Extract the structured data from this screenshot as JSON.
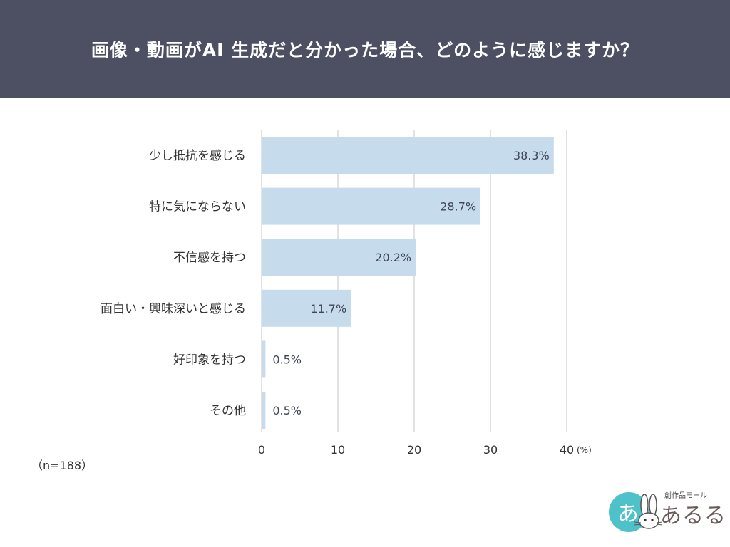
{
  "header": {
    "title": "画像・動画がAI 生成だと分かった場合、どのように感じますか？"
  },
  "chart_data": {
    "type": "bar",
    "orientation": "horizontal",
    "title": "画像・動画がAI 生成だと分かった場合、どのように感じますか？",
    "categories": [
      "少し抵抗を感じる",
      "特に気にならない",
      "不信感を持つ",
      "面白い・興味深いと感じる",
      "好印象を持つ",
      "その他"
    ],
    "values": [
      38.3,
      28.7,
      20.2,
      11.7,
      0.5,
      0.5
    ],
    "value_labels": [
      "38.3%",
      "28.7%",
      "20.2%",
      "11.7%",
      "0.5%",
      "0.5%"
    ],
    "x_ticks": [
      "0",
      "10",
      "20",
      "30",
      "40"
    ],
    "x_unit": "(%)",
    "xlim": [
      0,
      40
    ],
    "grid": true,
    "bar_color": "#c6dcec"
  },
  "note": "（n=188）",
  "logo": {
    "sub": "創作品モール",
    "main": "あるる",
    "mark_text": "あ"
  },
  "colors": {
    "header_bg": "#4c5062",
    "bar": "#c6dcec",
    "grid": "#d9d9d9",
    "logo_accent": "#4fc1c9"
  }
}
